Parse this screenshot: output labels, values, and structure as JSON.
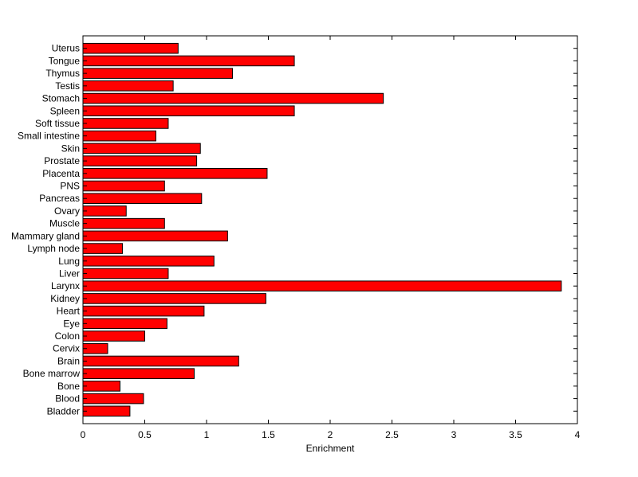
{
  "chart_data": {
    "type": "bar",
    "orientation": "horizontal",
    "title": "",
    "xlabel": "Enrichment",
    "ylabel": "",
    "xlim": [
      0,
      4
    ],
    "xticks": [
      0,
      0.5,
      1,
      1.5,
      2,
      2.5,
      3,
      3.5,
      4
    ],
    "xtick_labels": [
      "0",
      "0.5",
      "1",
      "1.5",
      "2",
      "2.5",
      "3",
      "3.5",
      "4"
    ],
    "grid": false,
    "bar_color": "#ff0000",
    "edge_color": "#000000",
    "categories": [
      "Bladder",
      "Blood",
      "Bone",
      "Bone marrow",
      "Brain",
      "Cervix",
      "Colon",
      "Eye",
      "Heart",
      "Kidney",
      "Larynx",
      "Liver",
      "Lung",
      "Lymph node",
      "Mammary gland",
      "Muscle",
      "Ovary",
      "Pancreas",
      "PNS",
      "Placenta",
      "Prostate",
      "Skin",
      "Small intestine",
      "Soft tissue",
      "Spleen",
      "Stomach",
      "Testis",
      "Thymus",
      "Tongue",
      "Uterus"
    ],
    "values": [
      0.38,
      0.49,
      0.3,
      0.9,
      1.26,
      0.2,
      0.5,
      0.68,
      0.98,
      1.48,
      3.87,
      0.69,
      1.06,
      0.32,
      1.17,
      0.66,
      0.35,
      0.96,
      0.66,
      1.49,
      0.92,
      0.95,
      0.59,
      0.69,
      1.71,
      2.43,
      0.73,
      1.21,
      1.71,
      0.77
    ]
  }
}
